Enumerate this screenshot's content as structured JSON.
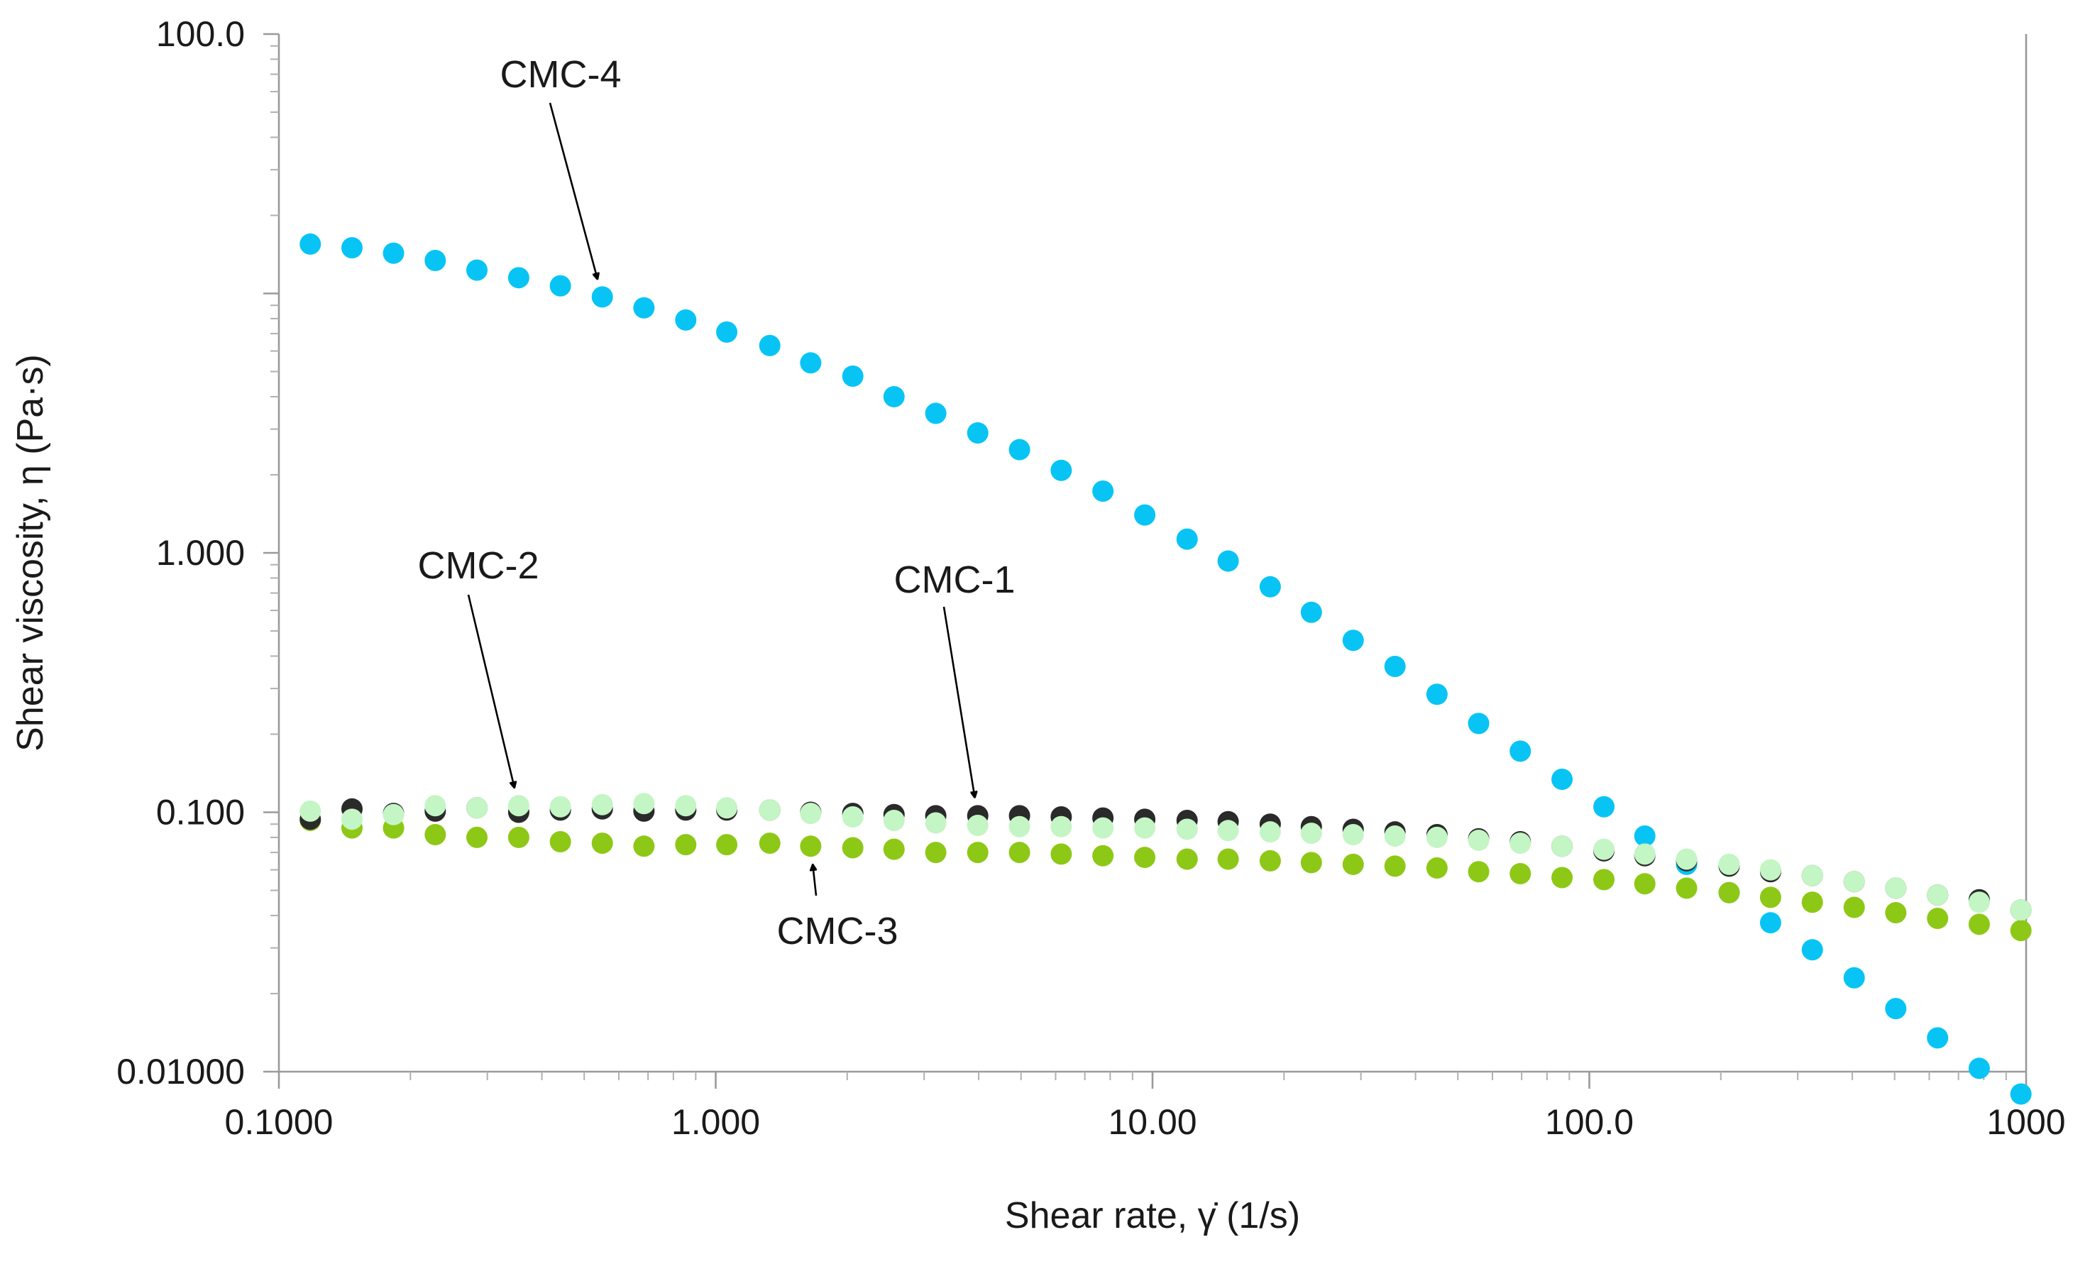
{
  "chart_data": {
    "type": "scatter",
    "title": "",
    "xlabel": "Shear rate, γ̇ (1/s)",
    "ylabel": "Shear viscosity, η (Pa·s)",
    "xscale": "log",
    "yscale": "log",
    "xlim": [
      0.1,
      1000
    ],
    "ylim": [
      0.01,
      100
    ],
    "x_ticks": [
      {
        "value": 0.1,
        "label": "0.1000"
      },
      {
        "value": 1,
        "label": "1.000"
      },
      {
        "value": 10,
        "label": "10.00"
      },
      {
        "value": 100,
        "label": "100.0"
      },
      {
        "value": 1000,
        "label": "1000"
      }
    ],
    "y_ticks": [
      {
        "value": 0.01,
        "label": "0.01000"
      },
      {
        "value": 0.1,
        "label": "0.100"
      },
      {
        "value": 1,
        "label": "1.000"
      },
      {
        "value": 100,
        "label": "100.0"
      }
    ],
    "grid": false,
    "legend": "none",
    "x": [
      0.118,
      0.147,
      0.183,
      0.228,
      0.284,
      0.354,
      0.441,
      0.55,
      0.685,
      0.854,
      1.06,
      1.33,
      1.65,
      2.06,
      2.56,
      3.19,
      3.98,
      4.96,
      6.18,
      7.7,
      9.6,
      12.0,
      14.9,
      18.6,
      23.1,
      28.8,
      35.9,
      44.8,
      55.8,
      69.5,
      86.6,
      108,
      134,
      167,
      209,
      260,
      324,
      404,
      503,
      627,
      781,
      973
    ],
    "series": [
      {
        "name": "CMC-1",
        "color": "#2a2a2a",
        "values": [
          0.094,
          0.103,
          0.099,
          0.101,
          0.104,
          0.1,
          0.102,
          0.103,
          0.101,
          0.102,
          0.102,
          0.102,
          0.1,
          0.099,
          0.098,
          0.097,
          0.097,
          0.097,
          0.096,
          0.095,
          0.094,
          0.093,
          0.092,
          0.09,
          0.088,
          0.086,
          0.084,
          0.082,
          0.079,
          0.077,
          0.074,
          0.071,
          0.068,
          0.065,
          0.062,
          0.059,
          0.057,
          0.054,
          0.051,
          0.048,
          0.046,
          0.042
        ]
      },
      {
        "name": "CMC-2",
        "color": "#c4f5c4",
        "values": [
          0.101,
          0.094,
          0.098,
          0.106,
          0.104,
          0.106,
          0.105,
          0.107,
          0.108,
          0.106,
          0.104,
          0.102,
          0.099,
          0.096,
          0.093,
          0.091,
          0.089,
          0.088,
          0.088,
          0.087,
          0.087,
          0.086,
          0.085,
          0.084,
          0.083,
          0.082,
          0.081,
          0.08,
          0.078,
          0.076,
          0.074,
          0.072,
          0.069,
          0.066,
          0.063,
          0.06,
          0.057,
          0.054,
          0.051,
          0.048,
          0.045,
          0.042
        ]
      },
      {
        "name": "CMC-3",
        "color": "#8dc816",
        "values": [
          0.093,
          0.087,
          0.087,
          0.082,
          0.08,
          0.08,
          0.077,
          0.076,
          0.074,
          0.075,
          0.075,
          0.076,
          0.074,
          0.073,
          0.072,
          0.07,
          0.07,
          0.07,
          0.069,
          0.068,
          0.067,
          0.066,
          0.066,
          0.065,
          0.064,
          0.063,
          0.062,
          0.061,
          0.059,
          0.058,
          0.056,
          0.055,
          0.053,
          0.051,
          0.049,
          0.047,
          0.045,
          0.043,
          0.041,
          0.039,
          0.037,
          0.035
        ]
      },
      {
        "name": "CMC-4",
        "color": "#08c4f5",
        "values": [
          15.5,
          15.0,
          14.3,
          13.4,
          12.3,
          11.5,
          10.7,
          9.7,
          8.8,
          7.9,
          7.1,
          6.3,
          5.4,
          4.8,
          4.0,
          3.45,
          2.9,
          2.5,
          2.08,
          1.73,
          1.4,
          1.13,
          0.93,
          0.74,
          0.59,
          0.46,
          0.365,
          0.285,
          0.22,
          0.172,
          0.134,
          0.105,
          0.081,
          0.063,
          0.049,
          0.0375,
          0.0295,
          0.023,
          0.0175,
          0.0135,
          0.0103,
          0.0082
        ]
      }
    ],
    "annotations": [
      {
        "text": "CMC-4",
        "target_series": "CMC-4",
        "target_x": 0.5
      },
      {
        "text": "CMC-2",
        "target_series": "CMC-2",
        "target_x": 0.37
      },
      {
        "text": "CMC-1",
        "target_series": "CMC-1",
        "target_x": 4.4
      },
      {
        "text": "CMC-3",
        "target_series": "CMC-3",
        "target_x": 1.5
      }
    ]
  }
}
